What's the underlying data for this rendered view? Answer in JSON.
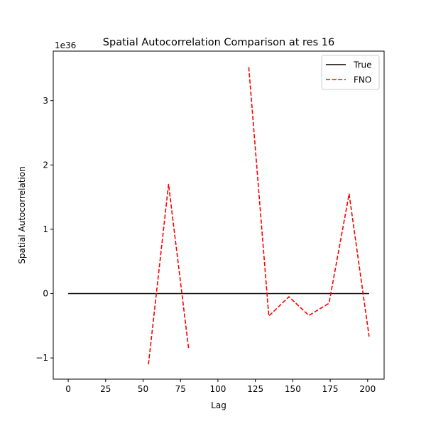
{
  "chart_data": {
    "type": "line",
    "title": "Spatial Autocorrelation Comparison at res 16",
    "xlabel": "Lag",
    "ylabel": "Spatial Autocorrelation",
    "y_offset_text": "1e36",
    "xlim": [
      -10,
      211
    ],
    "ylim": [
      -1.33,
      3.77
    ],
    "xticks": [
      0,
      25,
      50,
      75,
      100,
      125,
      150,
      175,
      200
    ],
    "yticks": [
      -1,
      0,
      1,
      2,
      3
    ],
    "ytick_labels": [
      "−1",
      "0",
      "1",
      "2",
      "3"
    ],
    "legend_position": "top-right",
    "series": [
      {
        "name": "True",
        "color": "#000000",
        "style": "solid",
        "segments": [
          [
            [
              0,
              0
            ],
            [
              201,
              0
            ]
          ]
        ]
      },
      {
        "name": "FNO",
        "color": "#ff0000",
        "style": "dashed",
        "segments": [
          [
            [
              53.6,
              -1.1
            ],
            [
              67,
              1.7
            ],
            [
              80.4,
              -0.85
            ]
          ],
          [
            [
              120.6,
              3.52
            ],
            [
              134,
              -0.35
            ],
            [
              147.4,
              -0.05
            ],
            [
              160.8,
              -0.34
            ],
            [
              174.2,
              -0.15
            ],
            [
              187.6,
              1.55
            ],
            [
              201,
              -0.67
            ]
          ]
        ]
      }
    ]
  }
}
